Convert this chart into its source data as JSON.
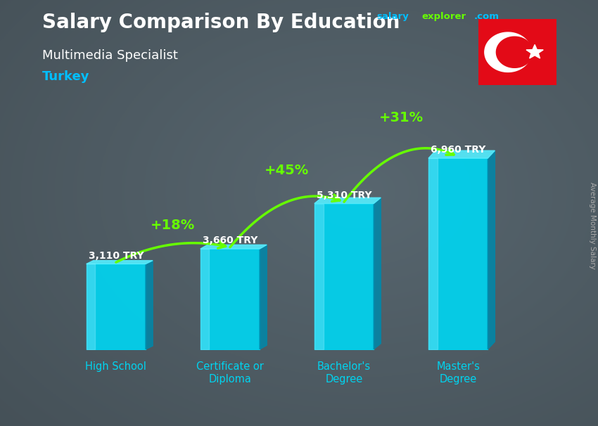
{
  "title": "Salary Comparison By Education",
  "subtitle": "Multimedia Specialist",
  "country": "Turkey",
  "ylabel": "Average Monthly Salary",
  "categories": [
    "High School",
    "Certificate or\nDiploma",
    "Bachelor's\nDegree",
    "Master's\nDegree"
  ],
  "values": [
    3110,
    3660,
    5310,
    6960
  ],
  "value_labels": [
    "3,110 TRY",
    "3,660 TRY",
    "5,310 TRY",
    "6,960 TRY"
  ],
  "pct_labels": [
    "+18%",
    "+45%",
    "+31%"
  ],
  "bar_color_main": "#00d4f0",
  "bar_color_light": "#55eeff",
  "bar_color_dark": "#0088aa",
  "bar_color_face": "#44ccee",
  "bg_dark": "#3a4a55",
  "title_color": "#ffffff",
  "subtitle_color": "#ffffff",
  "country_color": "#00bfff",
  "value_color": "#ffffff",
  "pct_color": "#66ff00",
  "arrow_color": "#66ff00",
  "xlabel_color": "#00d4f0",
  "site_salary_color": "#00bfff",
  "site_explorer_color": "#66ff00",
  "site_com_color": "#00bfff",
  "ylim": [
    0,
    9000
  ],
  "bar_width": 0.52
}
